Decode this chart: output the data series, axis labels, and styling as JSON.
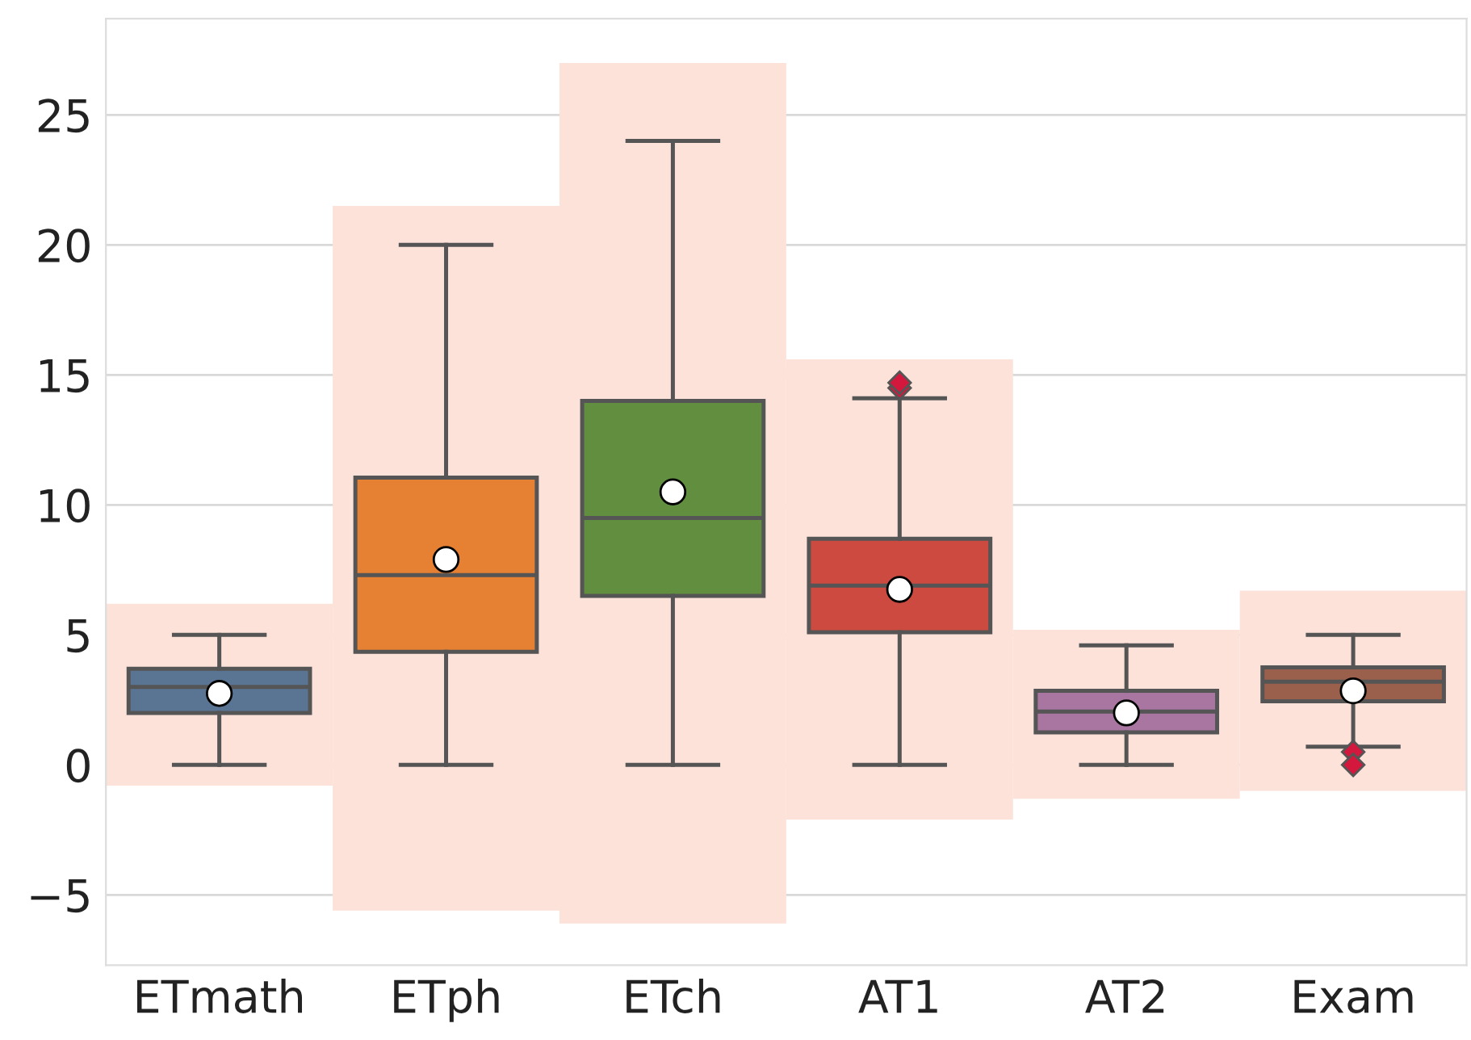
{
  "chart_data": {
    "type": "box",
    "categories": [
      "ETmath",
      "ETph",
      "ETch",
      "AT1",
      "AT2",
      "Exam"
    ],
    "colors": [
      "#5a7594",
      "#e68133",
      "#618f3f",
      "#cc4a3f",
      "#a876a0",
      "#9a604c"
    ],
    "boxes": [
      {
        "low": 0,
        "q1": 2.0,
        "median": 3.0,
        "q3": 3.7,
        "high": 5.0,
        "mean": 2.75
      },
      {
        "low": 0,
        "q1": 4.35,
        "median": 7.3,
        "q3": 11.05,
        "high": 20,
        "mean": 7.9
      },
      {
        "low": 0,
        "q1": 6.5,
        "median": 9.5,
        "q3": 14.0,
        "high": 24,
        "mean": 10.5
      },
      {
        "low": 0,
        "q1": 5.1,
        "median": 6.9,
        "q3": 8.7,
        "high": 14.1,
        "mean": 6.75,
        "outliers": [
          14.5,
          14.7
        ]
      },
      {
        "low": 0,
        "q1": 1.25,
        "median": 2.05,
        "q3": 2.85,
        "high": 4.6,
        "mean": 2.0
      },
      {
        "low": 0.7,
        "q1": 2.45,
        "median": 3.2,
        "q3": 3.75,
        "high": 5.0,
        "mean": 2.85,
        "outliers": [
          0.5,
          0.0
        ]
      }
    ],
    "series": [
      {
        "type": "bar",
        "color": "#fde2da",
        "base": [
          -0.8,
          -5.6,
          -6.1,
          -2.1,
          -1.3,
          -1.0
        ],
        "values": [
          7.0,
          27.1,
          33.1,
          17.7,
          6.5,
          7.7
        ]
      }
    ],
    "ylim": [
      -7.7,
      28.7
    ],
    "yticks": [
      -5,
      0,
      5,
      10,
      15,
      20,
      25
    ],
    "grid": "y"
  }
}
